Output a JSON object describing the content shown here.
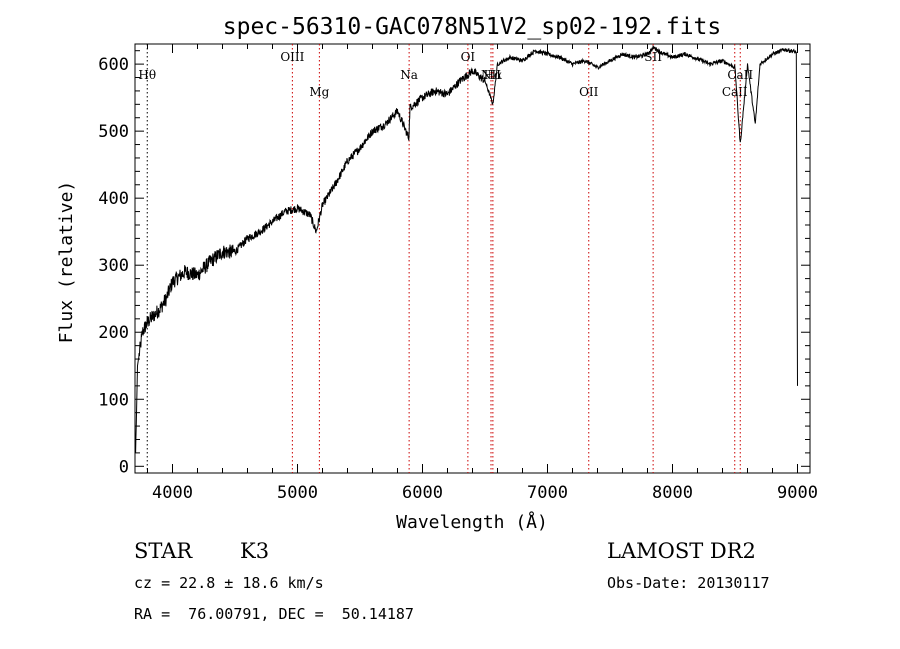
{
  "chart_data": {
    "type": "line",
    "title": "spec-56310-GAC078N51V2_sp02-192.fits",
    "xlabel": "Wavelength (Å)",
    "ylabel": "Flux (relative)",
    "xlim": [
      3700,
      9100
    ],
    "ylim": [
      -10,
      630
    ],
    "x_ticks": [
      4000,
      5000,
      6000,
      7000,
      8000,
      9000
    ],
    "y_ticks": [
      0,
      100,
      200,
      300,
      400,
      500,
      600
    ],
    "grid": false,
    "line_color": "#000000",
    "marker_line_color": "#cc0000",
    "spectrum_anchors": {
      "x": [
        3705,
        3720,
        3760,
        3800,
        3850,
        3900,
        3950,
        4000,
        4100,
        4200,
        4300,
        4400,
        4500,
        4600,
        4700,
        4800,
        4900,
        5000,
        5100,
        5150,
        5200,
        5300,
        5400,
        5500,
        5600,
        5700,
        5800,
        5890,
        5900,
        6000,
        6100,
        6200,
        6300,
        6400,
        6500,
        6563,
        6600,
        6700,
        6800,
        6900,
        7000,
        7100,
        7200,
        7300,
        7400,
        7500,
        7600,
        7700,
        7800,
        7850,
        7900,
        8000,
        8100,
        8200,
        8300,
        8400,
        8500,
        8542,
        8600,
        8662,
        8700,
        8800,
        8900,
        8990,
        9000
      ],
      "y": [
        20,
        150,
        200,
        215,
        225,
        235,
        250,
        275,
        290,
        285,
        305,
        320,
        320,
        340,
        350,
        365,
        380,
        385,
        375,
        350,
        390,
        420,
        455,
        475,
        500,
        510,
        530,
        490,
        535,
        550,
        560,
        555,
        575,
        590,
        575,
        540,
        600,
        610,
        605,
        620,
        615,
        610,
        600,
        605,
        595,
        605,
        615,
        610,
        615,
        625,
        618,
        610,
        615,
        608,
        600,
        605,
        595,
        480,
        600,
        510,
        600,
        615,
        622,
        618,
        120
      ]
    },
    "spectral_lines": [
      {
        "label": "Hθ",
        "wavelength": 3798,
        "row": "upper",
        "style": "black-dotted"
      },
      {
        "label": "OIII",
        "wavelength": 4959,
        "row": "top",
        "style": "red-dotted"
      },
      {
        "label": "Mg",
        "wavelength": 5175,
        "row": "lower",
        "style": "red-dotted"
      },
      {
        "label": "Na",
        "wavelength": 5893,
        "row": "upper",
        "style": "red-dotted"
      },
      {
        "label": "OI",
        "wavelength": 6363,
        "row": "top",
        "style": "red-dotted"
      },
      {
        "label": "NII",
        "wavelength": 6548,
        "row": "upper",
        "style": "red-dotted"
      },
      {
        "label": "Hα",
        "wavelength": 6563,
        "row": "upper",
        "style": "red-dotted"
      },
      {
        "label": "OII",
        "wavelength": 7330,
        "row": "lower",
        "style": "red-dotted"
      },
      {
        "label": "SII",
        "wavelength": 7845,
        "row": "top",
        "style": "red-dotted"
      },
      {
        "label": "CaII",
        "wavelength": 8498,
        "row": "lower",
        "style": "red-dotted"
      },
      {
        "label": "CaII",
        "wavelength": 8542,
        "row": "upper",
        "style": "red-dotted"
      }
    ]
  },
  "info": {
    "object_class": "STAR",
    "subclass": "K3",
    "survey": "LAMOST DR2",
    "redshift_text": "cz = 22.8 ± 18.6 km/s",
    "obs_date": "Obs-Date: 20130117",
    "coords": "RA =  76.00791, DEC =  50.14187"
  }
}
